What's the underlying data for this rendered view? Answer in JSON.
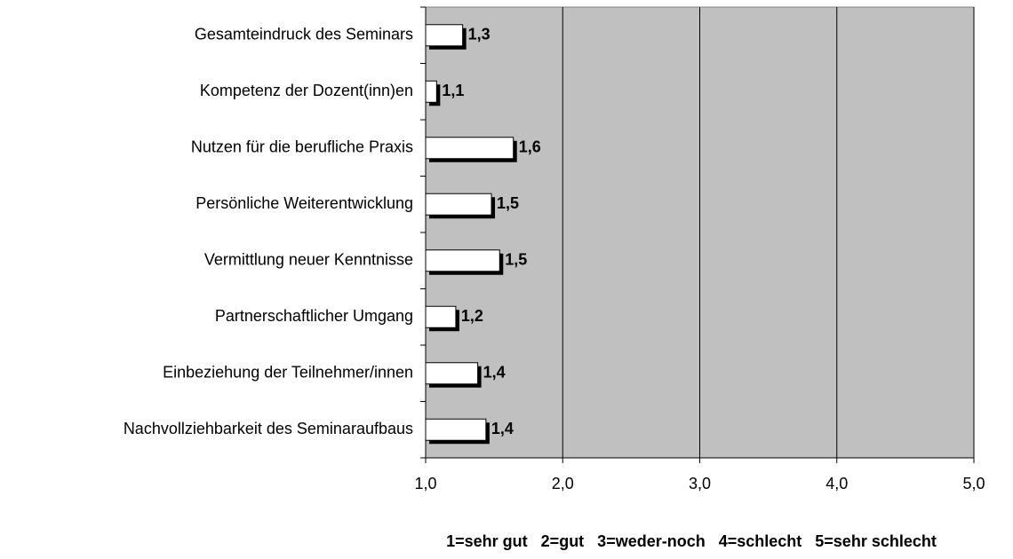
{
  "chart_data": {
    "type": "bar",
    "orientation": "horizontal",
    "categories": [
      "Gesamteindruck des Seminars",
      "Kompetenz der Dozent(inn)en",
      "Nutzen für die berufliche Praxis",
      "Persönliche Weiterentwicklung",
      "Vermittlung neuer Kenntnisse",
      "Partnerschaftlicher Umgang",
      "Einbeziehung der Teilnehmer/innen",
      "Nachvollziehbarkeit des Seminaraufbaus"
    ],
    "values": [
      1.27,
      1.08,
      1.64,
      1.48,
      1.54,
      1.22,
      1.38,
      1.44
    ],
    "value_labels": [
      "1,3",
      "1,1",
      "1,6",
      "1,5",
      "1,5",
      "1,2",
      "1,4",
      "1,4"
    ],
    "color": "#ffffff",
    "plot_background": "#c0c0c0",
    "xlim": [
      1,
      5
    ],
    "xticks": [
      {
        "value": 1,
        "label": "1,0"
      },
      {
        "value": 2,
        "label": "2,0"
      },
      {
        "value": 3,
        "label": "3,0"
      },
      {
        "value": 4,
        "label": "4,0"
      },
      {
        "value": 5,
        "label": "5,0"
      }
    ],
    "grid": true,
    "annotation": "1=sehr gut   2=gut   3=weder-noch   4=schlecht   5=sehr schlecht"
  }
}
